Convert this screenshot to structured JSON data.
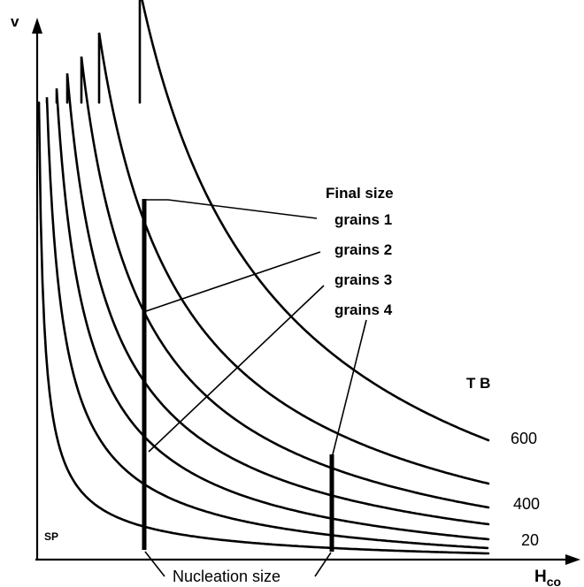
{
  "axes": {
    "y_label": "v",
    "x_label_main": "H",
    "x_label_sub": "co"
  },
  "legend": {
    "title": "Final size",
    "grains": [
      "grains 1",
      "grains 2",
      "grains 3",
      "grains 4"
    ]
  },
  "tb_label": "T B",
  "curve_labels": {
    "top": "600",
    "middle": "400",
    "bottom": "20"
  },
  "sp_label": "SP",
  "nucleation_label": "Nucleation size",
  "colors": {
    "ink": "#000000",
    "background": "#ffffff"
  }
}
